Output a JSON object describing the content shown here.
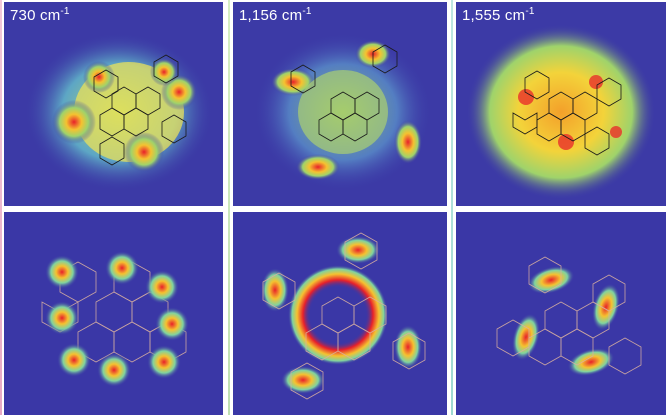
{
  "figure": {
    "panels": [
      {
        "label": "730 cm",
        "exponent": "-1"
      },
      {
        "label": "1,156 cm",
        "exponent": "-1"
      },
      {
        "label": "1,555 cm",
        "exponent": "-1"
      }
    ]
  },
  "colors": {
    "background": "#3a37a6",
    "accent_separators": [
      "#e8b4d0",
      "#c9e6b0",
      "#a8e0d8"
    ]
  }
}
